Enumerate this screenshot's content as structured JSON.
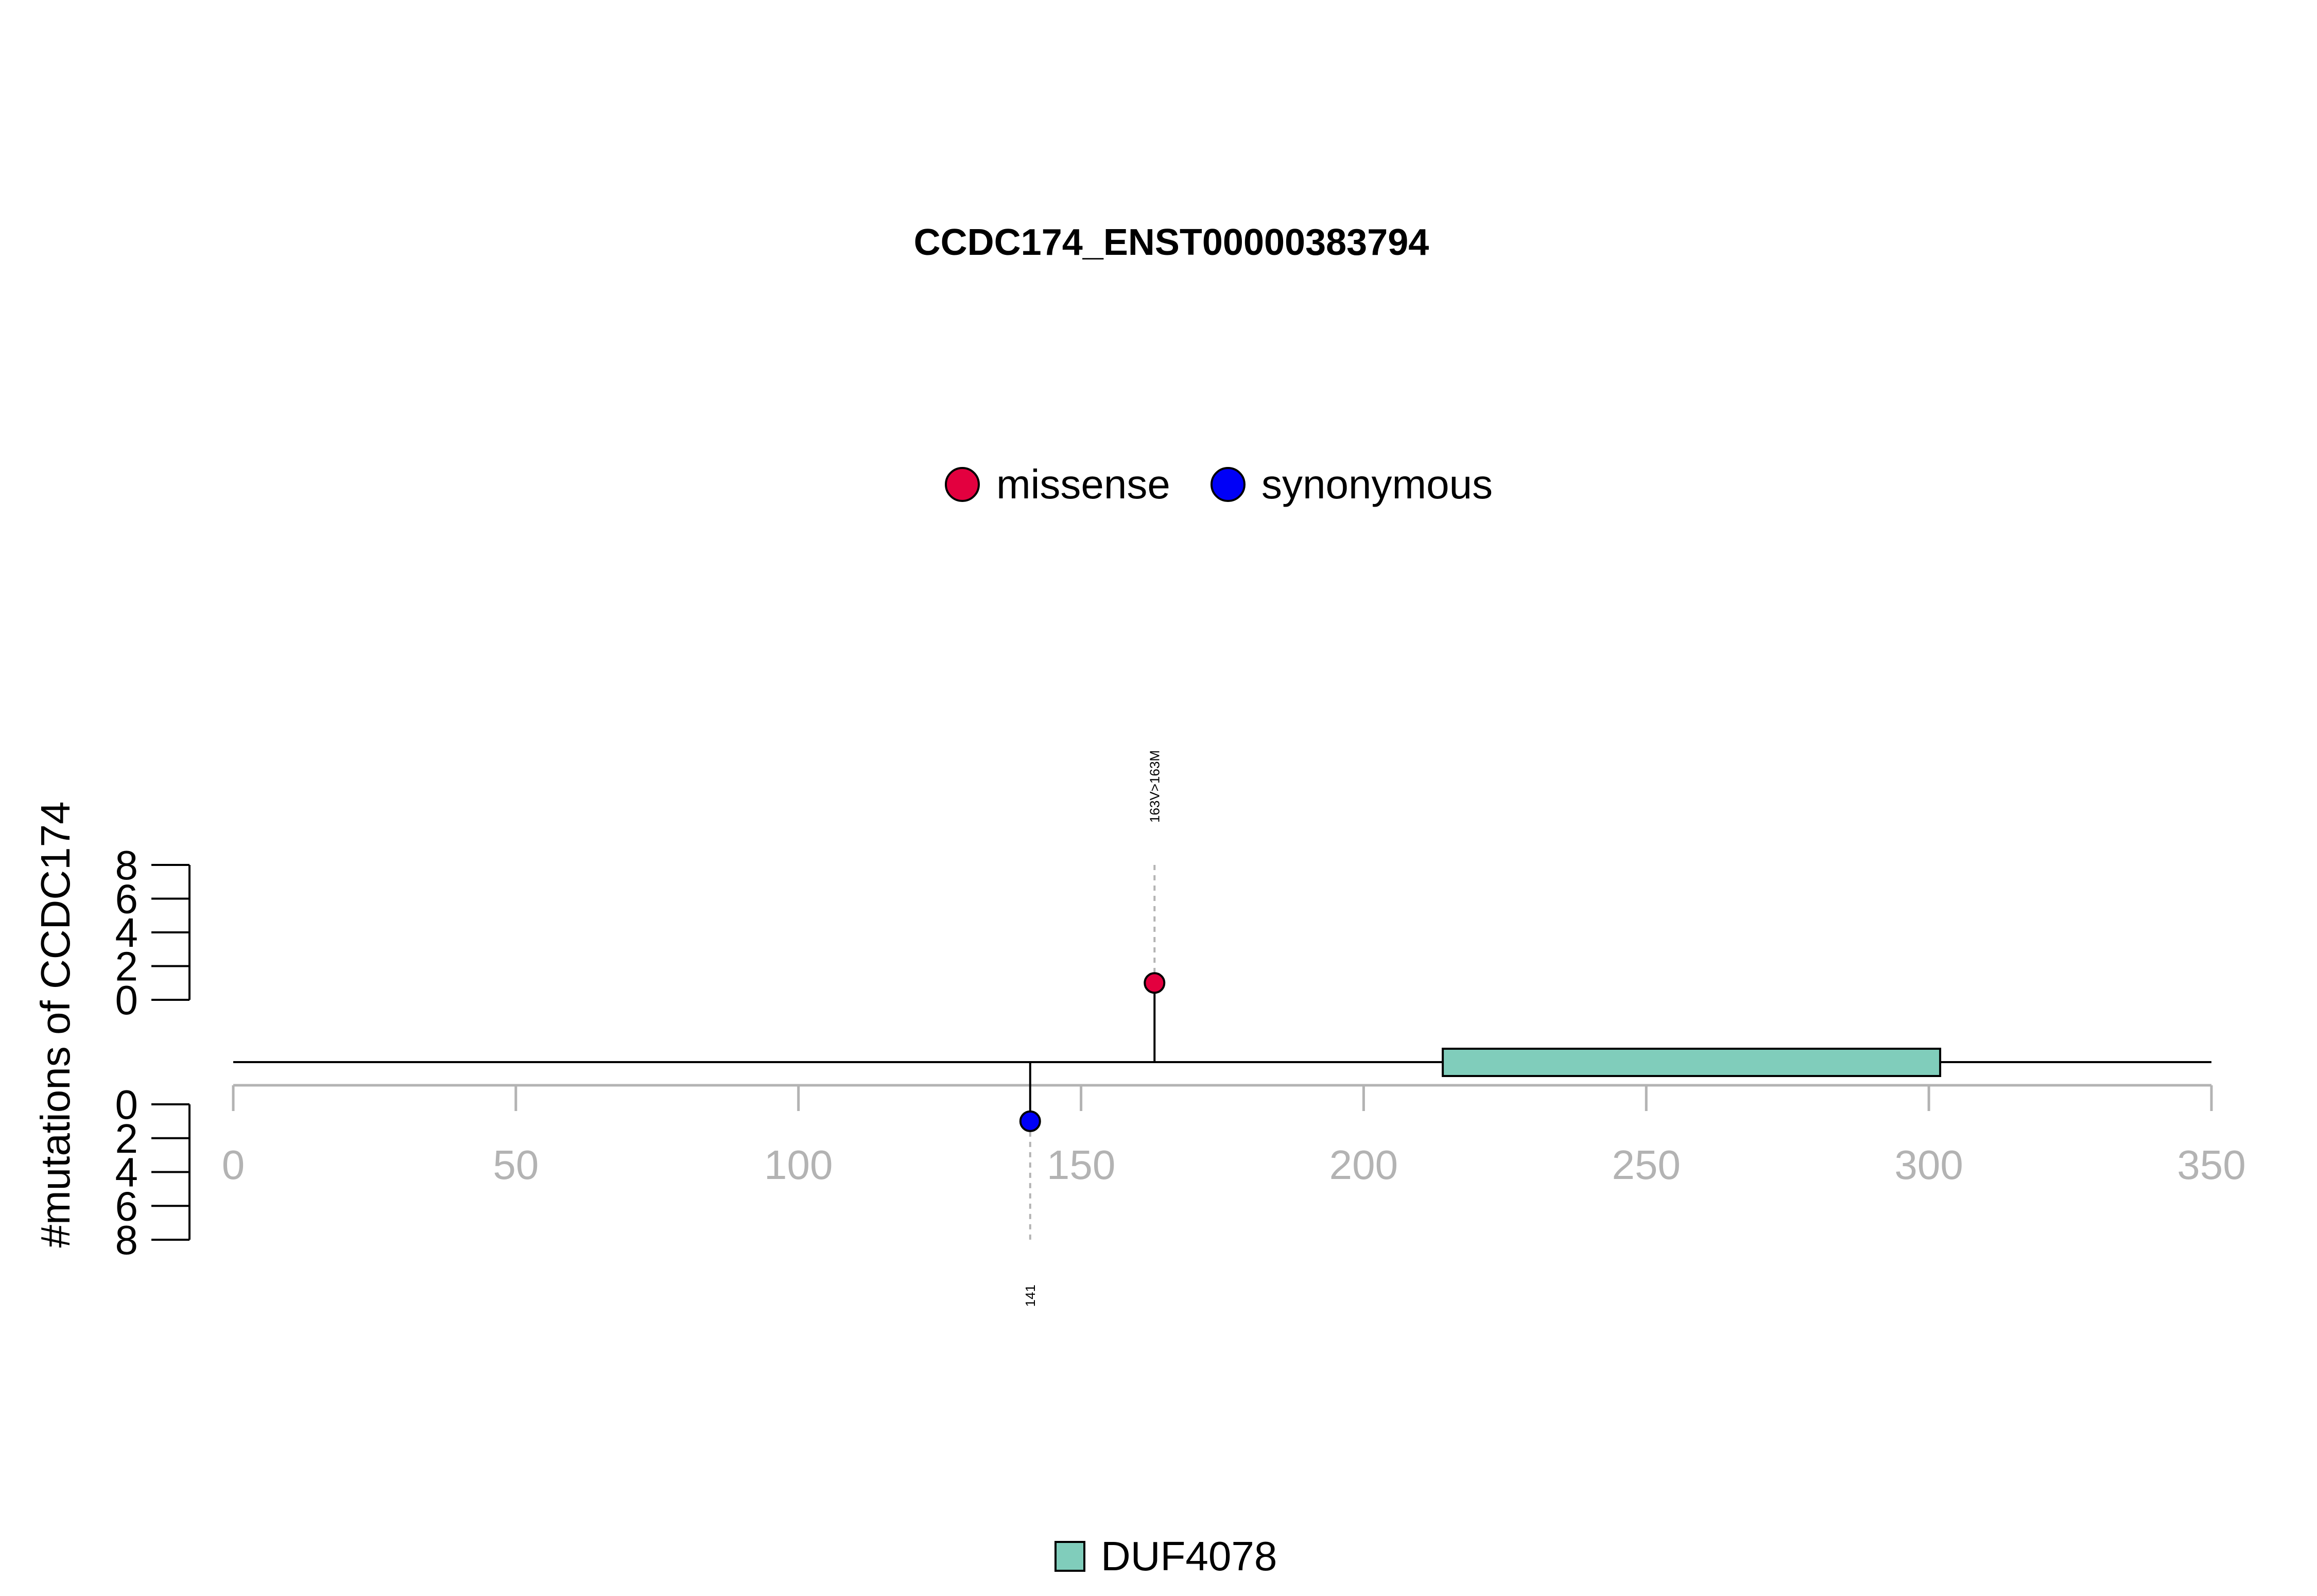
{
  "chart_data": {
    "type": "lollipop",
    "title": "CCDC174_ENST00000383794",
    "ylabel": "#mutations of CCDC174",
    "protein_length": 350,
    "xlim": [
      0,
      350
    ],
    "x_ticks": [
      0,
      50,
      100,
      150,
      200,
      250,
      300,
      350
    ],
    "upper_ylim": [
      0,
      8
    ],
    "lower_ylim": [
      0,
      8
    ],
    "y_ticks": [
      0,
      2,
      4,
      6,
      8
    ],
    "legend_position": "top-center",
    "mutation_legend": [
      {
        "label": "missense",
        "color": "#e3003f"
      },
      {
        "label": "synonymous",
        "color": "#0000f7"
      }
    ],
    "domain_legend": [
      {
        "label": "DUF4078",
        "color": "#80cdbb"
      }
    ],
    "domains": [
      {
        "name": "DUF4078",
        "start": 214,
        "end": 302,
        "color": "#80cdbb"
      }
    ],
    "mutations": [
      {
        "position": 163,
        "count": 1,
        "type": "missense",
        "side": "upper",
        "label": "163V>163M",
        "color": "#e3003f"
      },
      {
        "position": 141,
        "count": 1,
        "type": "synonymous",
        "side": "lower",
        "label": "141",
        "color": "#0000f7"
      }
    ]
  }
}
